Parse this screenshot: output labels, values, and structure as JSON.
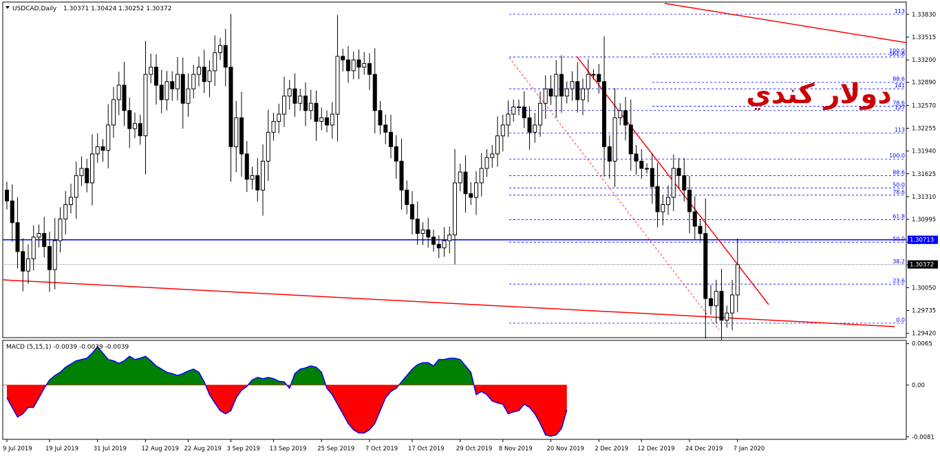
{
  "header": {
    "symbol_label": "USDCAD,Daily",
    "ohlc_label": "1.30371 1.30424 1.30252 1.30372"
  },
  "watermark": {
    "text": "دولار كندي",
    "color": "#cc0000"
  },
  "colors": {
    "background": "#ffffff",
    "border": "#000000",
    "bull_candle": "#ffffff",
    "bear_candle": "#000000",
    "trendline": "#ff0000",
    "support_line": "#0000ff",
    "fib_line": "#0000ff",
    "price_tag_bg": "#0000ff",
    "macd_positive": "#008000",
    "macd_negative": "#ff0000",
    "macd_signal": "#0000ff"
  },
  "price_axis": {
    "ticks": [
      1.3383,
      1.33515,
      1.332,
      1.3289,
      1.3257,
      1.32255,
      1.3194,
      1.31625,
      1.3131,
      1.30995,
      1.3068,
      1.30365,
      1.3005,
      1.29735,
      1.2942
    ],
    "tick_labels": [
      "1.33830",
      "1.33515",
      "1.33200",
      "1.32890",
      "1.32570",
      "1.32255",
      "1.31940",
      "1.31625",
      "1.31310",
      "1.30995",
      "1.30680",
      "1.30365",
      "1.30050",
      "1.29735",
      "1.29420"
    ],
    "range": [
      1.2936,
      1.34
    ]
  },
  "price_tags": [
    {
      "label": "1.30713",
      "value": 1.30713,
      "color": "#0000ff"
    },
    {
      "label": "1.30372",
      "value": 1.30372,
      "color": "#000000"
    }
  ],
  "time_axis": {
    "labels": [
      "9 Jul 2019",
      "19 Jul 2019",
      "31 Jul 2019",
      "12 Aug 2019",
      "22 Aug 2019",
      "3 Sep 2019",
      "13 Sep 2019",
      "25 Sep 2019",
      "7 Oct 2019",
      "17 Oct 2019",
      "29 Oct 2019",
      "8 Nov 2019",
      "20 Nov 2019",
      "2 Dec 2019",
      "12 Dec 2019",
      "24 Dec 2019",
      "7 Jan 2020"
    ],
    "label_bars": [
      0,
      8,
      17,
      26,
      34,
      42,
      50,
      59,
      68,
      76,
      85,
      93,
      102,
      111,
      119,
      128,
      137
    ]
  },
  "chart_data": {
    "type": "candlestick",
    "series_name": "USDCAD,Daily",
    "last_close": 1.30372,
    "horizontal_level": 1.30713,
    "closes": [
      1.3125,
      1.3095,
      1.3055,
      1.3028,
      1.3045,
      1.3075,
      1.308,
      1.3062,
      1.303,
      1.307,
      1.31,
      1.312,
      1.313,
      1.316,
      1.317,
      1.315,
      1.319,
      1.32,
      1.3195,
      1.323,
      1.3265,
      1.3285,
      1.325,
      1.3225,
      1.3232,
      1.3215,
      1.33,
      1.331,
      1.3285,
      1.3265,
      1.329,
      1.328,
      1.33,
      1.326,
      1.328,
      1.33,
      1.331,
      1.329,
      1.3305,
      1.333,
      1.334,
      1.331,
      1.32,
      1.324,
      1.319,
      1.3155,
      1.316,
      1.314,
      1.318,
      1.322,
      1.3235,
      1.3245,
      1.327,
      1.328,
      1.326,
      1.327,
      1.325,
      1.326,
      1.3235,
      1.324,
      1.323,
      1.3245,
      1.3325,
      1.332,
      1.3305,
      1.332,
      1.331,
      1.3315,
      1.33,
      1.325,
      1.323,
      1.322,
      1.32,
      1.318,
      1.314,
      1.312,
      1.31,
      1.308,
      1.3085,
      1.3075,
      1.3065,
      1.306,
      1.307,
      1.3078,
      1.315,
      1.3165,
      1.3135,
      1.313,
      1.315,
      1.317,
      1.3185,
      1.319,
      1.3215,
      1.323,
      1.3245,
      1.3255,
      1.3255,
      1.324,
      1.322,
      1.323,
      1.326,
      1.328,
      1.327,
      1.33,
      1.327,
      1.328,
      1.329,
      1.3265,
      1.328,
      1.33,
      1.33,
      1.329,
      1.32,
      1.318,
      1.324,
      1.325,
      1.323,
      1.319,
      1.318,
      1.317,
      1.317,
      1.3145,
      1.311,
      1.312,
      1.313,
      1.317,
      1.316,
      1.314,
      1.311,
      1.309,
      1.308,
      1.299,
      1.298,
      1.3,
      1.296,
      1.297,
      1.2995,
      1.3037
    ]
  },
  "fib_levels": [
    {
      "label": "113",
      "value": 1.3383
    },
    {
      "label": "100.0",
      "value": 1.3328
    },
    {
      "label": "161.8",
      "value": 1.3324
    },
    {
      "label": "88.6",
      "value": 1.3289
    },
    {
      "label": "141",
      "value": 1.328
    },
    {
      "label": "78.6",
      "value": 1.3256
    },
    {
      "label": "127",
      "value": 1.325
    },
    {
      "label": "113",
      "value": 1.3219
    },
    {
      "label": "100.0",
      "value": 1.3183
    },
    {
      "label": "88.6",
      "value": 1.316
    },
    {
      "label": "50.0",
      "value": 1.3143
    },
    {
      "label": "78.6",
      "value": 1.3133
    },
    {
      "label": "61.8",
      "value": 1.3099
    },
    {
      "label": "50.0",
      "value": 1.3068
    },
    {
      "label": "38.2",
      "value": 1.3037
    },
    {
      "label": "23.6",
      "value": 1.301
    },
    {
      "label": "0.0",
      "value": 1.2956
    }
  ],
  "macd": {
    "label": "MACD (5,15,1) -0.0039 -0.0039 -0.0039",
    "ticks": [
      0.0065,
      0.0,
      -0.0081
    ],
    "tick_labels": [
      "0.0065",
      "0.00",
      "-0.0081"
    ],
    "range": [
      -0.0085,
      0.007
    ],
    "values": [
      -0.002,
      -0.0035,
      -0.005,
      -0.0045,
      -0.0035,
      -0.0035,
      -0.002,
      -0.0005,
      0.0008,
      0.0015,
      0.002,
      0.0028,
      0.0033,
      0.0038,
      0.004,
      0.0042,
      0.005,
      0.006,
      0.005,
      0.004,
      0.0038,
      0.0034,
      0.0038,
      0.0045,
      0.004,
      0.0042,
      0.0045,
      0.0038,
      0.003,
      0.0025,
      0.002,
      0.0018,
      0.0015,
      0.0018,
      0.0022,
      0.0025,
      0.002,
      0.0005,
      -0.0015,
      -0.0028,
      -0.004,
      -0.0045,
      -0.004,
      -0.002,
      -0.0008,
      -0.0002,
      0.0008,
      0.0012,
      0.001,
      0.0012,
      0.001,
      0.0006,
      0.0005,
      -0.0005,
      0.0018,
      0.0025,
      0.0027,
      0.003,
      0.0028,
      0.002,
      -0.0005,
      -0.0015,
      -0.003,
      -0.0045,
      -0.006,
      -0.007,
      -0.0075,
      -0.0075,
      -0.007,
      -0.006,
      -0.004,
      -0.002,
      -0.001,
      -0.0005,
      0.0005,
      0.0015,
      0.0025,
      0.0032,
      0.0035,
      0.0035,
      0.003,
      0.004,
      0.004,
      0.0042,
      0.0042,
      0.004,
      0.003,
      0.002,
      -0.0015,
      -0.001,
      -0.0015,
      -0.0025,
      -0.0028,
      -0.003,
      -0.0045,
      -0.0042,
      -0.004,
      -0.003,
      -0.0035,
      -0.0045,
      -0.006,
      -0.0078,
      -0.008,
      -0.0078,
      -0.0068,
      -0.0039
    ]
  }
}
